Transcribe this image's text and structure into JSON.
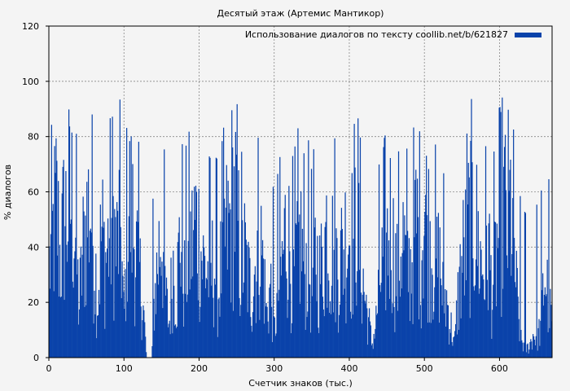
{
  "chart_data": {
    "type": "bar",
    "title": "Десятый этаж (Артемис Мантикор)",
    "xlabel": "Счетчик знаков (тыс.)",
    "ylabel": "% диалогов",
    "xlim": [
      0,
      670
    ],
    "ylim": [
      0,
      120
    ],
    "xticks": [
      0,
      100,
      200,
      300,
      400,
      500,
      600
    ],
    "yticks": [
      0,
      20,
      40,
      60,
      80,
      100,
      120
    ],
    "grid": true,
    "legend_position": "top-right",
    "series": [
      {
        "name": "Использование диалогов по тексту coollib.net/b/621827",
        "color": "#0a43aa",
        "bin_width": 1,
        "profile": [
          [
            0,
            55
          ],
          [
            5,
            75
          ],
          [
            10,
            95
          ],
          [
            15,
            60
          ],
          [
            20,
            85
          ],
          [
            25,
            90
          ],
          [
            30,
            98
          ],
          [
            35,
            80
          ],
          [
            40,
            30
          ],
          [
            45,
            65
          ],
          [
            50,
            85
          ],
          [
            55,
            98
          ],
          [
            60,
            70
          ],
          [
            65,
            35
          ],
          [
            70,
            80
          ],
          [
            75,
            60
          ],
          [
            80,
            75
          ],
          [
            85,
            90
          ],
          [
            90,
            65
          ],
          [
            95,
            90
          ],
          [
            100,
            20
          ],
          [
            105,
            98
          ],
          [
            110,
            90
          ],
          [
            115,
            70
          ],
          [
            120,
            55
          ],
          [
            125,
            35
          ],
          [
            130,
            0
          ],
          [
            137,
            0
          ],
          [
            140,
            35
          ],
          [
            145,
            60
          ],
          [
            150,
            85
          ],
          [
            155,
            40
          ],
          [
            160,
            20
          ],
          [
            165,
            60
          ],
          [
            170,
            40
          ],
          [
            175,
            80
          ],
          [
            180,
            45
          ],
          [
            185,
            65
          ],
          [
            190,
            70
          ],
          [
            195,
            85
          ],
          [
            200,
            75
          ],
          [
            205,
            60
          ],
          [
            210,
            55
          ],
          [
            215,
            50
          ],
          [
            220,
            60
          ],
          [
            225,
            40
          ],
          [
            230,
            60
          ],
          [
            235,
            75
          ],
          [
            240,
            80
          ],
          [
            245,
            99
          ],
          [
            250,
            95
          ],
          [
            255,
            55
          ],
          [
            260,
            65
          ],
          [
            265,
            50
          ],
          [
            270,
            40
          ],
          [
            275,
            60
          ],
          [
            280,
            75
          ],
          [
            285,
            60
          ],
          [
            290,
            25
          ],
          [
            295,
            45
          ],
          [
            300,
            15
          ],
          [
            305,
            40
          ],
          [
            310,
            55
          ],
          [
            315,
            80
          ],
          [
            320,
            70
          ],
          [
            325,
            45
          ],
          [
            330,
            65
          ],
          [
            335,
            75
          ],
          [
            340,
            55
          ],
          [
            345,
            60
          ],
          [
            350,
            40
          ],
          [
            355,
            65
          ],
          [
            360,
            50
          ],
          [
            365,
            60
          ],
          [
            370,
            85
          ],
          [
            375,
            65
          ],
          [
            380,
            70
          ],
          [
            385,
            55
          ],
          [
            390,
            65
          ],
          [
            395,
            75
          ],
          [
            400,
            80
          ],
          [
            405,
            70
          ],
          [
            410,
            95
          ],
          [
            415,
            60
          ],
          [
            420,
            40
          ],
          [
            425,
            25
          ],
          [
            430,
            8
          ],
          [
            435,
            20
          ],
          [
            440,
            45
          ],
          [
            445,
            60
          ],
          [
            450,
            70
          ],
          [
            455,
            85
          ],
          [
            460,
            60
          ],
          [
            465,
            50
          ],
          [
            470,
            80
          ],
          [
            475,
            60
          ],
          [
            480,
            55
          ],
          [
            485,
            70
          ],
          [
            490,
            85
          ],
          [
            495,
            65
          ],
          [
            500,
            98
          ],
          [
            505,
            80
          ],
          [
            510,
            70
          ],
          [
            515,
            55
          ],
          [
            520,
            60
          ],
          [
            525,
            40
          ],
          [
            530,
            35
          ],
          [
            535,
            20
          ],
          [
            540,
            8
          ],
          [
            545,
            40
          ],
          [
            550,
            60
          ],
          [
            555,
            70
          ],
          [
            560,
            85
          ],
          [
            565,
            90
          ],
          [
            570,
            75
          ],
          [
            575,
            60
          ],
          [
            580,
            55
          ],
          [
            585,
            70
          ],
          [
            590,
            40
          ],
          [
            595,
            60
          ],
          [
            600,
            85
          ],
          [
            605,
            99
          ],
          [
            610,
            80
          ],
          [
            615,
            95
          ],
          [
            620,
            60
          ],
          [
            625,
            25
          ],
          [
            630,
            10
          ],
          [
            635,
            5
          ],
          [
            640,
            8
          ],
          [
            645,
            15
          ],
          [
            650,
            12
          ],
          [
            655,
            20
          ],
          [
            660,
            55
          ],
          [
            665,
            35
          ],
          [
            670,
            20
          ]
        ]
      }
    ]
  }
}
